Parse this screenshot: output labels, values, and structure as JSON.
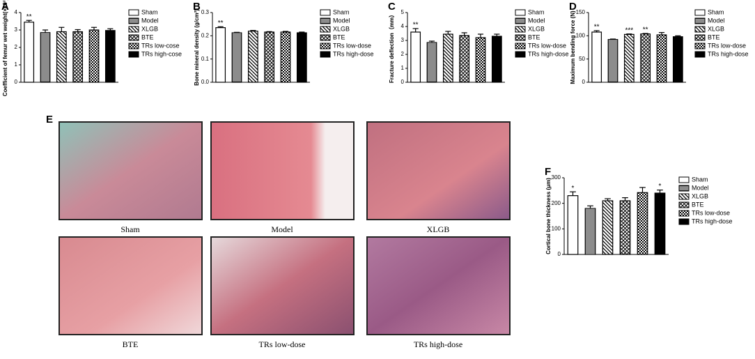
{
  "chart_data": [
    {
      "type": "bar",
      "panel": "A",
      "ylabel": "Coefficient of femur wet weight(×10³)",
      "categories": [
        "Sham",
        "Model",
        "XLGB",
        "BTE",
        "TRs low-cose",
        "TRs high-cose"
      ],
      "values": [
        3.45,
        2.85,
        2.9,
        2.9,
        3.0,
        2.97
      ],
      "errors": [
        0.1,
        0.15,
        0.25,
        0.12,
        0.15,
        0.1
      ],
      "stars": [
        "**",
        null,
        null,
        null,
        null,
        null
      ],
      "patterns": [
        "white",
        "hlines",
        "diag",
        "cross",
        "check",
        "black"
      ],
      "ylim": [
        0,
        4
      ],
      "yticks": [
        0,
        1,
        2,
        3,
        4
      ]
    },
    {
      "type": "bar",
      "panel": "B",
      "ylabel": "Bone mineral density (g/cm²)",
      "categories": [
        "Sham",
        "Model",
        "XLGB",
        "BTE",
        "TRs low-dose",
        "TRs high-dose"
      ],
      "values": [
        0.235,
        0.213,
        0.22,
        0.216,
        0.216,
        0.213
      ],
      "errors": [
        0.004,
        0.002,
        0.003,
        0.002,
        0.003,
        0.003
      ],
      "stars": [
        "**",
        null,
        null,
        null,
        null,
        null
      ],
      "patterns": [
        "white",
        "hlines",
        "diag",
        "cross",
        "check",
        "black"
      ],
      "ylim": [
        0,
        0.3
      ],
      "yticks": [
        {
          "value": 0,
          "label": "0.0"
        },
        0.1,
        0.2,
        0.3
      ]
    },
    {
      "type": "bar",
      "panel": "C",
      "ylabel": "Fracture deflection（mm）",
      "categories": [
        "Sham",
        "Model",
        "XLGB",
        "BTE",
        "TRs low-dose",
        "TRs high-dose"
      ],
      "values": [
        3.6,
        2.85,
        3.45,
        3.35,
        3.2,
        3.3
      ],
      "errors": [
        0.25,
        0.1,
        0.2,
        0.2,
        0.25,
        0.15
      ],
      "stars": [
        "**",
        null,
        null,
        null,
        null,
        null
      ],
      "patterns": [
        "white",
        "hlines",
        "diag",
        "cross",
        "check",
        "black"
      ],
      "ylim": [
        0,
        5
      ],
      "yticks": [
        0,
        1,
        2,
        3,
        4,
        5
      ]
    },
    {
      "type": "bar",
      "panel": "D",
      "ylabel": "Maximum bending force (N)",
      "categories": [
        "Sham",
        "Model",
        "XLGB",
        "BTE",
        "TRs low-dose",
        "TRs high-dose"
      ],
      "values": [
        108,
        92,
        103,
        104,
        102,
        98
      ],
      "errors": [
        3,
        1,
        1,
        1,
        5,
        2
      ],
      "stars": [
        "**",
        null,
        "***",
        "**",
        null,
        null
      ],
      "patterns": [
        "white",
        "hlines",
        "diag",
        "cross",
        "check",
        "black"
      ],
      "ylim": [
        0,
        150
      ],
      "yticks": [
        0,
        50,
        100,
        150
      ]
    },
    {
      "type": "bar",
      "panel": "F",
      "ylabel": "Cortical bone thickness (μm)",
      "categories": [
        "Sham",
        "Model",
        "XLGB",
        "BTE",
        "TRs low-dose",
        "TRs high-dose"
      ],
      "values": [
        230,
        180,
        210,
        210,
        242,
        240
      ],
      "errors": [
        15,
        10,
        8,
        12,
        20,
        12
      ],
      "stars": [
        "*",
        null,
        null,
        null,
        null,
        "*"
      ],
      "patterns": [
        "white",
        "hlines",
        "diag",
        "cross",
        "check",
        "black"
      ],
      "ylim": [
        0,
        300
      ],
      "yticks": [
        0,
        100,
        200,
        300
      ]
    }
  ],
  "micrographs": {
    "panel": "E",
    "captions": [
      "Sham",
      "Model",
      "XLGB",
      "BTE",
      "TRs low-dose",
      "TRs high-dose"
    ]
  }
}
